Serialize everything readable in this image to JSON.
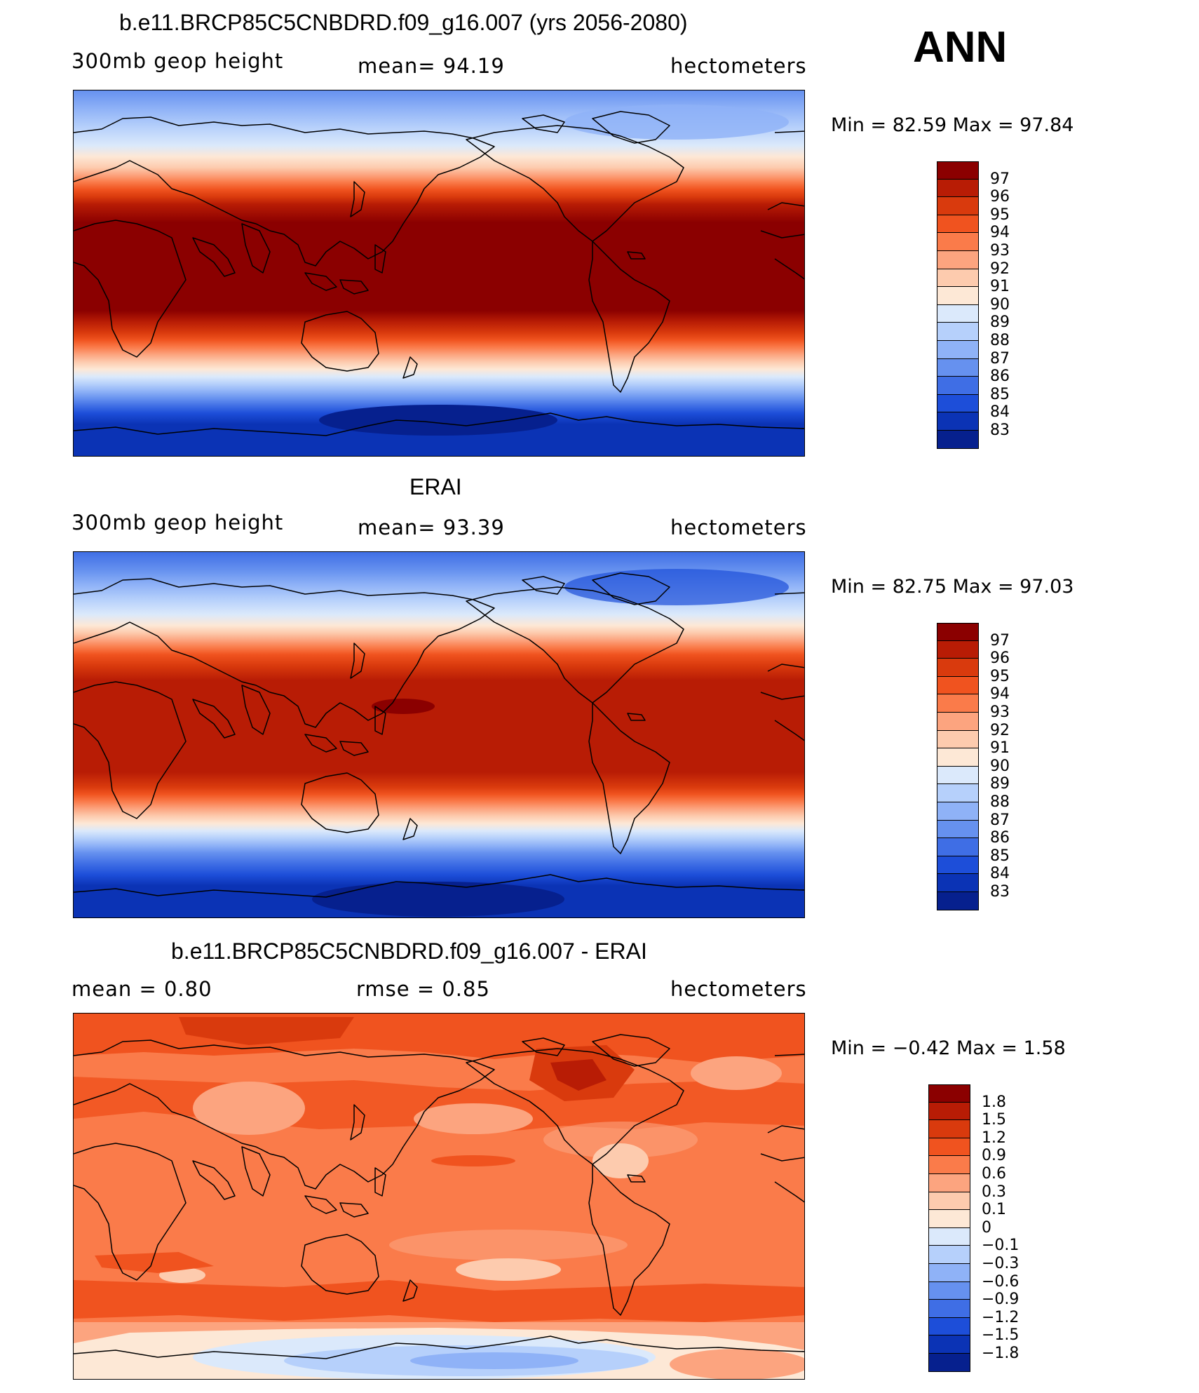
{
  "season": "ANN",
  "panels": [
    {
      "id": "model",
      "title": "b.e11.BRCP85C5CNBDRD.f09_g16.007 (yrs 2056-2080)",
      "left_label": "300mb  geop  height",
      "center_label": "mean=   94.19",
      "right_label": "hectometers",
      "min_max": "Min  =    82.59  Max  =    97.84",
      "colorbar_ticks": [
        "97",
        "96",
        "95",
        "94",
        "93",
        "92",
        "91",
        "90",
        "89",
        "88",
        "87",
        "86",
        "85",
        "84",
        "83"
      ],
      "colorbar_colors": [
        "#8b0000",
        "#b81c05",
        "#d93a0d",
        "#f0531f",
        "#fa7b4a",
        "#fca47f",
        "#fdcbae",
        "#fde8d6",
        "#dbe9fb",
        "#b6d0fb",
        "#8fb2f7",
        "#6691ef",
        "#3f6ee5",
        "#1d4ed9",
        "#0b33b5",
        "#06208e"
      ],
      "colorbar_tick_y": [
        258,
        284,
        310,
        335,
        361,
        387,
        412,
        438,
        463,
        489,
        514,
        540,
        566,
        591,
        617
      ]
    },
    {
      "id": "obs",
      "title": "ERAI",
      "left_label": "300mb  geop  height",
      "center_label": "mean=   93.39",
      "right_label": "hectometers",
      "min_max": "Min  =    82.75  Max  =    97.03",
      "colorbar_ticks": [
        "97",
        "96",
        "95",
        "94",
        "93",
        "92",
        "91",
        "90",
        "89",
        "88",
        "87",
        "86",
        "85",
        "84",
        "83"
      ],
      "colorbar_colors": [
        "#8b0000",
        "#b81c05",
        "#d93a0d",
        "#f0531f",
        "#fa7b4a",
        "#fca47f",
        "#fdcbae",
        "#fde8d6",
        "#dbe9fb",
        "#b6d0fb",
        "#8fb2f7",
        "#6691ef",
        "#3f6ee5",
        "#1d4ed9",
        "#0b33b5",
        "#06208e"
      ]
    },
    {
      "id": "diff",
      "title": "b.e11.BRCP85C5CNBDRD.f09_g16.007 - ERAI",
      "left_label": "mean  =      0.80",
      "center_label": "rmse  =      0.85",
      "right_label": "hectometers",
      "min_max": "Min  =   −0.42  Max  =      1.58",
      "colorbar_ticks": [
        "1.8",
        "1.5",
        "1.2",
        "0.9",
        "0.6",
        "0.3",
        "0.1",
        "0",
        "−0.1",
        "−0.3",
        "−0.6",
        "−0.9",
        "−1.2",
        "−1.5",
        "−1.8"
      ],
      "colorbar_colors": [
        "#8b0000",
        "#b81c05",
        "#d93a0d",
        "#f0531f",
        "#fa7b4a",
        "#fca47f",
        "#fdcbae",
        "#fde8d6",
        "#dbe9fb",
        "#b6d0fb",
        "#8fb2f7",
        "#6691ef",
        "#3f6ee5",
        "#1d4ed9",
        "#0b33b5",
        "#06208e"
      ]
    }
  ]
}
